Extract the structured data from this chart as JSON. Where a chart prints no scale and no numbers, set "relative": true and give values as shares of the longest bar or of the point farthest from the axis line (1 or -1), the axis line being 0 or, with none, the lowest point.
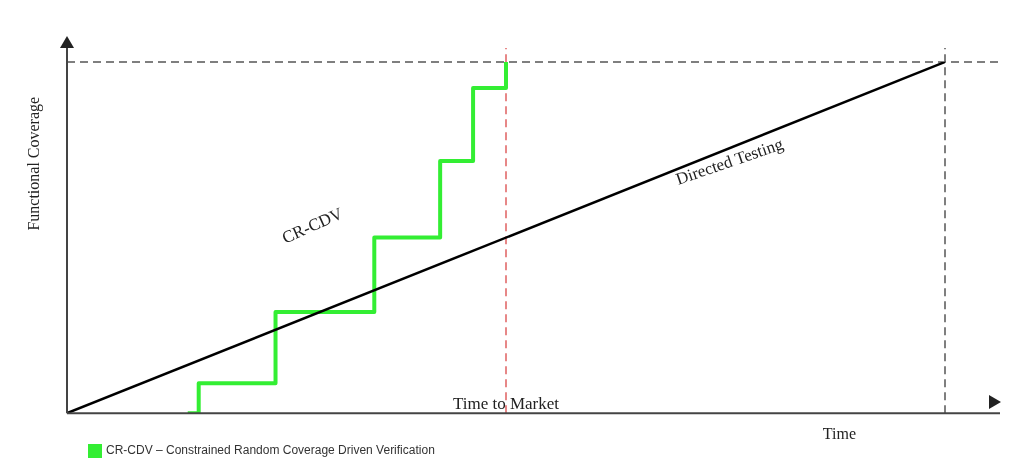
{
  "chart_data": {
    "type": "line",
    "relative": true,
    "xlabel": "Time",
    "ylabel": "Functional Coverage",
    "grid": false,
    "legend": "bottom left",
    "marker": "none",
    "categories": [
      null,
      null,
      null,
      null,
      null,
      null,
      null,
      null,
      null,
      null,
      null,
      null,
      null,
      null,
      null,
      null,
      null,
      null,
      null,
      null,
      null,
      null,
      null,
      null,
      null,
      null,
      null,
      null,
      null,
      null,
      null,
      null,
      null,
      null,
      null,
      null,
      null,
      null,
      null,
      null,
      null,
      null,
      null,
      null,
      null,
      null,
      null,
      null,
      null,
      null,
      null,
      null,
      null,
      null,
      null,
      null,
      null,
      null,
      null,
      null,
      null,
      null,
      null,
      null,
      null,
      null,
      null,
      null,
      null,
      null,
      null,
      null,
      null,
      null,
      null,
      null,
      null,
      null,
      null,
      null,
      null
    ],
    "series": [
      {
        "type": "step",
        "name": "CR-CDV – Constrained Random Coverage Driven Verification",
        "color": "#33ee33",
        "values": [
          null,
          null,
          null,
          null,
          null,
          null,
          null,
          null,
          null,
          null,
          null,
          0,
          0.085,
          null,
          null,
          null,
          null,
          null,
          null,
          0.288,
          null,
          null,
          null,
          null,
          null,
          null,
          null,
          null,
          0.5,
          null,
          null,
          null,
          null,
          null,
          0.718,
          null,
          null,
          0.926,
          null,
          null,
          1.0,
          null,
          null,
          null,
          null,
          null,
          null,
          null,
          null,
          null,
          null,
          null,
          null,
          null,
          null,
          null,
          null,
          null,
          null,
          null,
          null,
          null,
          null,
          null,
          null,
          null,
          null,
          null,
          null,
          null,
          null,
          null,
          null,
          null,
          null,
          null,
          null,
          null,
          null,
          null,
          null
        ]
      },
      {
        "color": "#000000",
        "values": [
          0,
          null,
          null,
          null,
          null,
          null,
          null,
          null,
          null,
          null,
          null,
          null,
          null,
          null,
          null,
          null,
          null,
          null,
          null,
          null,
          null,
          null,
          null,
          null,
          null,
          null,
          null,
          null,
          null,
          null,
          null,
          null,
          null,
          null,
          null,
          null,
          null,
          null,
          null,
          null,
          null,
          null,
          null,
          null,
          null,
          null,
          null,
          null,
          null,
          null,
          null,
          null,
          null,
          null,
          null,
          null,
          null,
          null,
          null,
          null,
          null,
          null,
          null,
          null,
          null,
          null,
          null,
          null,
          null,
          null,
          null,
          null,
          null,
          null,
          null,
          null,
          null,
          null,
          null,
          null,
          1
        ]
      }
    ],
    "ref_lines": [
      {
        "axis": "y",
        "value": 1.0,
        "label": null,
        "color": "#555555",
        "line_style": "dashed"
      }
    ],
    "annotations": [
      "CR-CDV",
      "Directed Testing",
      "Time to Market"
    ]
  }
}
